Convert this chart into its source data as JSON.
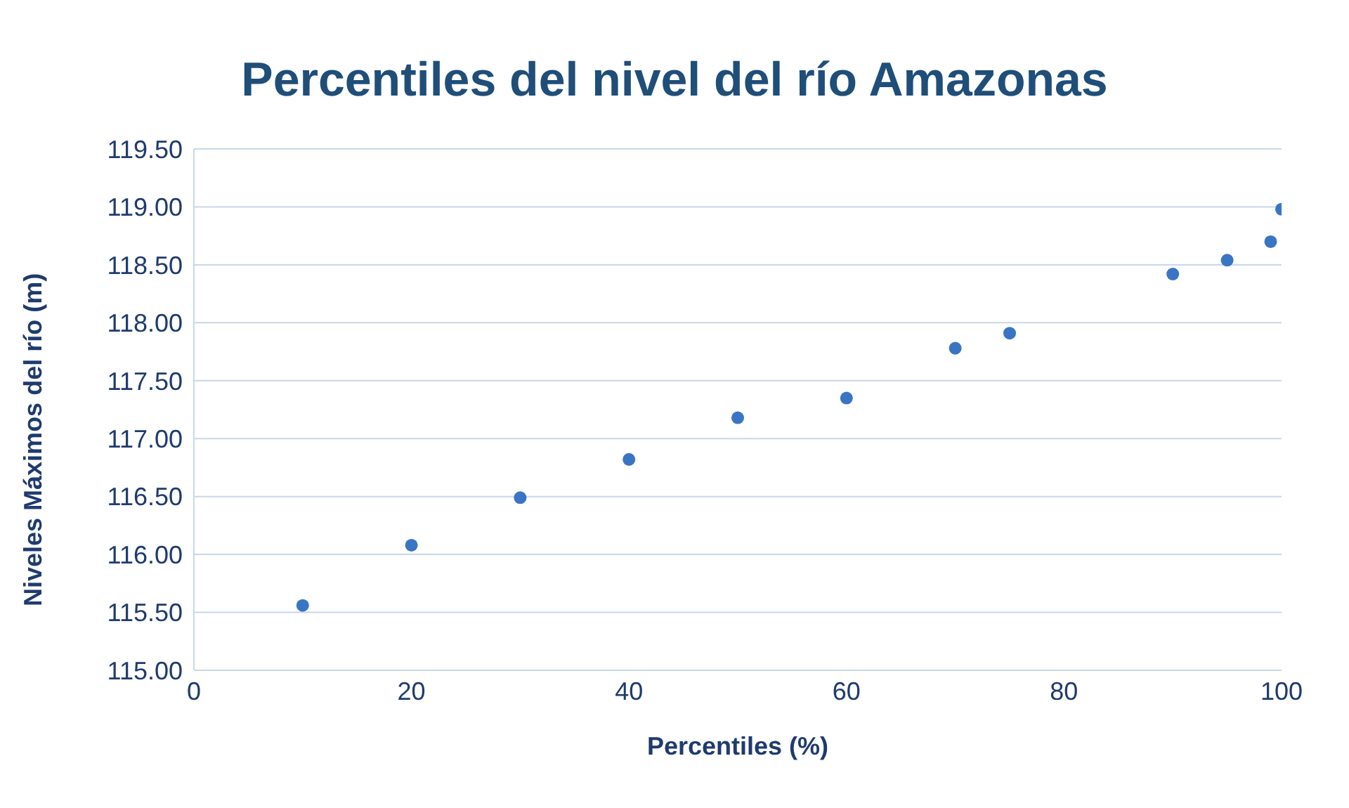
{
  "chart_data": {
    "type": "scatter",
    "title": "Percentiles del nivel del río Amazonas",
    "xlabel": "Percentiles (%)",
    "ylabel": "Niveles Máximos del río (m)",
    "x": [
      10,
      20,
      30,
      40,
      50,
      60,
      70,
      75,
      90,
      95,
      99,
      100
    ],
    "series": [
      {
        "color": "#3a75c4",
        "values": [
          115.56,
          116.08,
          116.49,
          116.82,
          117.18,
          117.35,
          117.78,
          117.91,
          118.42,
          118.54,
          118.7,
          118.98
        ]
      }
    ],
    "xlim": [
      0,
      100
    ],
    "xticks": [
      0,
      20,
      40,
      60,
      80,
      100
    ],
    "ylim": [
      115,
      119.5
    ],
    "yticks": [
      {
        "value": 115,
        "label": "115.00"
      },
      {
        "value": 115.5,
        "label": "115.50"
      },
      {
        "value": 116,
        "label": "116.00"
      },
      {
        "value": 116.5,
        "label": "116.50"
      },
      {
        "value": 117,
        "label": "117.00"
      },
      {
        "value": 117.5,
        "label": "117.50"
      },
      {
        "value": 118,
        "label": "118.00"
      },
      {
        "value": 118.5,
        "label": "118.50"
      },
      {
        "value": 119,
        "label": "119.00"
      },
      {
        "value": 119.5,
        "label": "119.50"
      }
    ],
    "grid": "y",
    "marker": "circle",
    "legend": false
  }
}
